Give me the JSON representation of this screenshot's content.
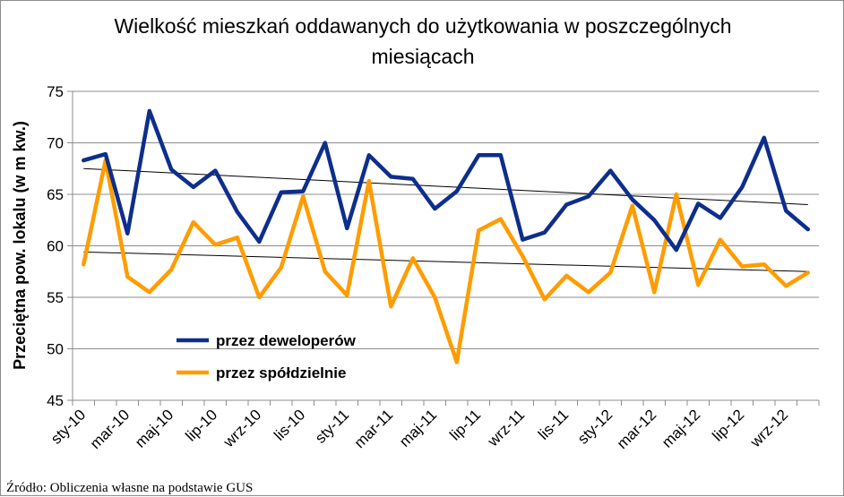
{
  "chart_data": {
    "type": "line",
    "title_line1": "Wielkość mieszkań oddawanych do użytkowania  w poszczególnych",
    "title_line2": "miesiącach",
    "ylabel": "Przeciętna pow. lokalu (w m kw.)",
    "xlabel": "",
    "ylim": [
      45,
      75
    ],
    "ytick_step": 5,
    "grid": "horizontal",
    "legend_position": "bottom-left",
    "source": "Źródło: Obliczenia własne na podstawie GUS",
    "x": [
      "sty-10",
      "lut-10",
      "mar-10",
      "kwi-10",
      "maj-10",
      "cze-10",
      "lip-10",
      "sie-10",
      "wrz-10",
      "paź-10",
      "lis-10",
      "gru-10",
      "sty-11",
      "lut-11",
      "mar-11",
      "kwi-11",
      "maj-11",
      "cze-11",
      "lip-11",
      "sie-11",
      "wrz-11",
      "paź-11",
      "lis-11",
      "gru-11",
      "sty-12",
      "lut-12",
      "mar-12",
      "kwi-12",
      "maj-12",
      "cze-12",
      "lip-12",
      "sie-12",
      "wrz-12",
      "paź-12"
    ],
    "tick_labels": [
      "sty-10",
      "mar-10",
      "maj-10",
      "lip-10",
      "wrz-10",
      "lis-10",
      "sty-11",
      "mar-11",
      "maj-11",
      "lip-11",
      "wrz-11",
      "lis-11",
      "sty-12",
      "mar-12",
      "maj-12",
      "lip-12",
      "wrz-12"
    ],
    "series": [
      {
        "name": "przez deweloperów",
        "color": "#0d2e8c",
        "values": [
          68.3,
          68.9,
          61.2,
          73.1,
          67.4,
          65.7,
          67.3,
          63.3,
          60.4,
          65.2,
          65.3,
          70.0,
          61.7,
          68.8,
          66.7,
          66.5,
          63.6,
          65.3,
          68.8,
          68.8,
          60.6,
          61.3,
          64.0,
          64.8,
          67.3,
          64.5,
          62.5,
          59.6,
          64.1,
          62.7,
          65.7,
          70.5,
          63.4,
          61.6
        ]
      },
      {
        "name": "przez spółdzielnie",
        "color": "#ff9c00",
        "values": [
          58.2,
          68.3,
          57.0,
          55.5,
          57.7,
          62.3,
          60.1,
          60.8,
          55.0,
          57.9,
          64.8,
          57.5,
          55.2,
          66.3,
          54.1,
          58.8,
          55.0,
          48.7,
          61.5,
          62.6,
          59.0,
          54.8,
          57.1,
          55.5,
          57.4,
          63.9,
          55.5,
          65.0,
          56.2,
          60.6,
          58.0,
          58.2,
          56.1,
          57.4
        ]
      }
    ],
    "trendlines": [
      {
        "series": "przez deweloperów",
        "start": 67.5,
        "end": 64.0,
        "color": "#000000"
      },
      {
        "series": "przez spółdzielnie",
        "start": 59.4,
        "end": 57.5,
        "color": "#000000"
      }
    ]
  }
}
